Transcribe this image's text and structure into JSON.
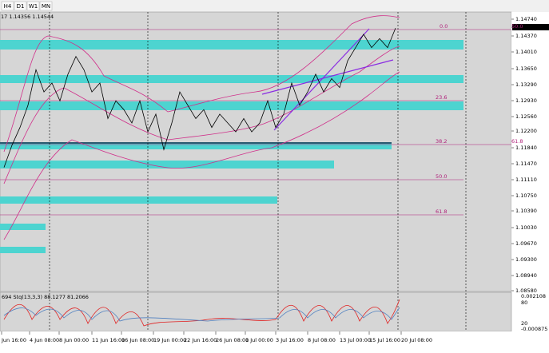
{
  "toolbar": {
    "tabs": [
      "H4",
      "D1",
      "W1",
      "MN"
    ]
  },
  "header": {
    "info": "17 1.14356 1.14544"
  },
  "price_axis": {
    "labels": [
      "1.14740",
      "1.14544",
      "1.14370",
      "1.14010",
      "1.13650",
      "1.13290",
      "1.12930",
      "1.12560",
      "1.12200",
      "1.11840",
      "1.11470",
      "1.11110",
      "1.10750",
      "1.10390",
      "1.10030",
      "1.09670",
      "1.09300",
      "1.08940",
      "1.08580"
    ]
  },
  "fib_labels": [
    "0.0",
    "50.0",
    "23.6",
    "38.2",
    "61.8",
    "50.0",
    "61.8"
  ],
  "price_series": {
    "values": [
      1.114,
      1.119,
      1.123,
      1.128,
      1.136,
      1.131,
      1.133,
      1.129,
      1.135,
      1.139,
      1.136,
      1.131,
      1.133,
      1.125,
      1.129,
      1.127,
      1.124,
      1.129,
      1.122,
      1.126,
      1.118,
      1.124,
      1.131,
      1.128,
      1.125,
      1.127,
      1.123,
      1.126,
      1.124,
      1.122,
      1.125,
      1.122,
      1.124,
      1.129,
      1.123,
      1.126,
      1.133,
      1.128,
      1.131,
      1.135,
      1.131,
      1.134,
      1.132,
      1.138,
      1.141,
      1.144,
      1.141,
      1.143,
      1.141,
      1.1454
    ]
  },
  "indicator": {
    "label": "694  Stq(13,3,3) 88.1277 81.2066",
    "axis_labels": [
      "0.002108",
      "80",
      "20",
      "-0.000875"
    ]
  },
  "time_axis": {
    "labels": [
      "Jun 16:00",
      "4 Jun 08:00",
      "8 Jun 00:00",
      "11 Jun 16:00",
      "16 Jun 08:00",
      "19 Jun 00:00",
      "22 Jun 16:00",
      "26 Jun 08:00",
      "1 Jul 00:00",
      "3 Jul 16:00",
      "8 Jul 08:00",
      "13 Jul 00:00",
      "15 Jul 16:00",
      "20 Jul 08:00"
    ]
  }
}
